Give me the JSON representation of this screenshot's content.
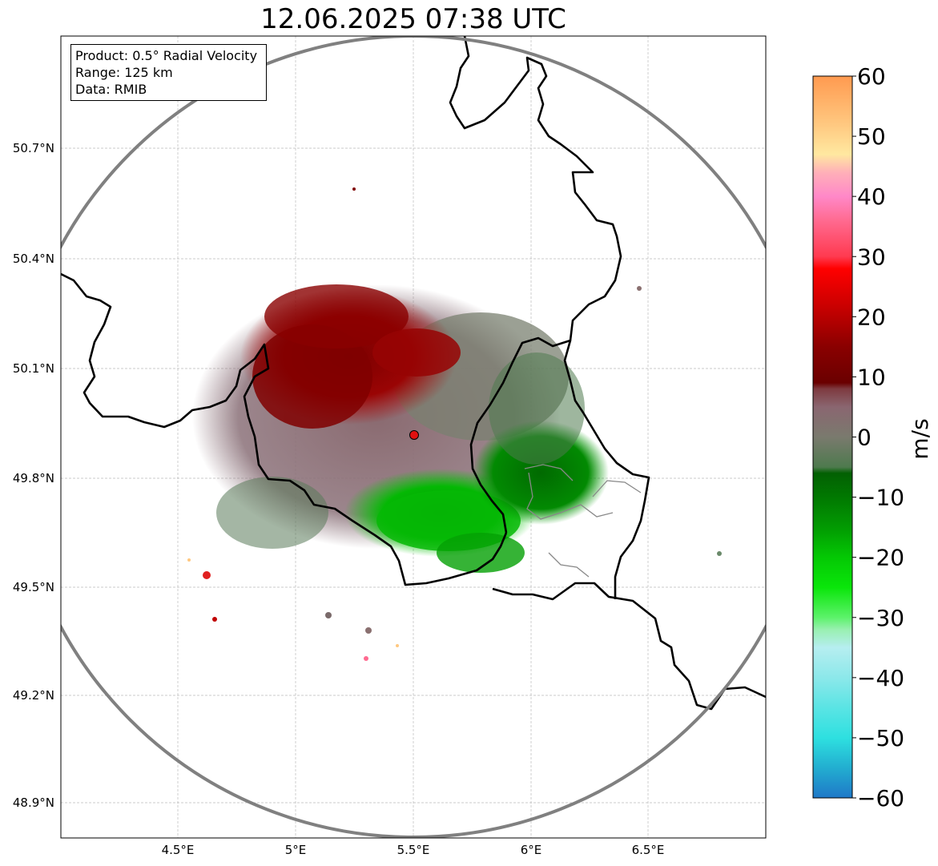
{
  "title": "12.06.2025 07:38 UTC",
  "info": {
    "product": "Product: 0.5° Radial Velocity",
    "range": "Range: 125 km",
    "data": "Data: RMIB"
  },
  "axes": {
    "lon_ticks": [
      {
        "value": 4.5,
        "label": "4.5°E"
      },
      {
        "value": 5.0,
        "label": "5°E"
      },
      {
        "value": 5.5,
        "label": "5.5°E"
      },
      {
        "value": 6.0,
        "label": "6°E"
      },
      {
        "value": 6.5,
        "label": "6.5°E"
      }
    ],
    "lat_ticks": [
      {
        "value": 50.7,
        "label": "50.7°N"
      },
      {
        "value": 50.4,
        "label": "50.4°N"
      },
      {
        "value": 50.1,
        "label": "50.1°N"
      },
      {
        "value": 49.8,
        "label": "49.8°N"
      },
      {
        "value": 49.5,
        "label": "49.5°N"
      },
      {
        "value": 49.2,
        "label": "49.2°N"
      },
      {
        "value": 48.9,
        "label": "48.9°N"
      }
    ]
  },
  "radar_site": {
    "lon": 5.505,
    "lat": 49.914,
    "color": "#e01010"
  },
  "colorbar": {
    "unit": "m/s",
    "min": -60,
    "max": 60,
    "ticks": [
      {
        "value": 60,
        "label": "60"
      },
      {
        "value": 50,
        "label": "50"
      },
      {
        "value": 40,
        "label": "40"
      },
      {
        "value": 30,
        "label": "30"
      },
      {
        "value": 20,
        "label": "20"
      },
      {
        "value": 10,
        "label": "10"
      },
      {
        "value": 0,
        "label": "0"
      },
      {
        "value": -10,
        "label": "−10"
      },
      {
        "value": -20,
        "label": "−20"
      },
      {
        "value": -30,
        "label": "−30"
      },
      {
        "value": -40,
        "label": "−40"
      },
      {
        "value": -50,
        "label": "−50"
      },
      {
        "value": -60,
        "label": "−60"
      }
    ],
    "stops": [
      {
        "v": -60,
        "c": "#1f78c8"
      },
      {
        "v": -55,
        "c": "#22aed0"
      },
      {
        "v": -50,
        "c": "#2ee0e0"
      },
      {
        "v": -45,
        "c": "#5ae4e4"
      },
      {
        "v": -40,
        "c": "#8ce8ea"
      },
      {
        "v": -35,
        "c": "#b6eef0"
      },
      {
        "v": -32,
        "c": "#98f0b0"
      },
      {
        "v": -30,
        "c": "#5cf26a"
      },
      {
        "v": -25,
        "c": "#0ae60a"
      },
      {
        "v": -20,
        "c": "#04c804"
      },
      {
        "v": -15,
        "c": "#029a02"
      },
      {
        "v": -10,
        "c": "#017801"
      },
      {
        "v": -6,
        "c": "#026002"
      },
      {
        "v": -5,
        "c": "#4e7a4e"
      },
      {
        "v": 0,
        "c": "#7a7a6e"
      },
      {
        "v": 5,
        "c": "#8a6670"
      },
      {
        "v": 8,
        "c": "#7e3a40"
      },
      {
        "v": 9,
        "c": "#6a0000"
      },
      {
        "v": 15,
        "c": "#8a0000"
      },
      {
        "v": 22,
        "c": "#cc0000"
      },
      {
        "v": 28,
        "c": "#ff0000"
      },
      {
        "v": 30,
        "c": "#ff3a50"
      },
      {
        "v": 36,
        "c": "#ff6a90"
      },
      {
        "v": 40,
        "c": "#ff88c8"
      },
      {
        "v": 44,
        "c": "#ffb0b8"
      },
      {
        "v": 47,
        "c": "#ffe8a0"
      },
      {
        "v": 52,
        "c": "#ffc880"
      },
      {
        "v": 60,
        "c": "#ff9a50"
      }
    ]
  }
}
